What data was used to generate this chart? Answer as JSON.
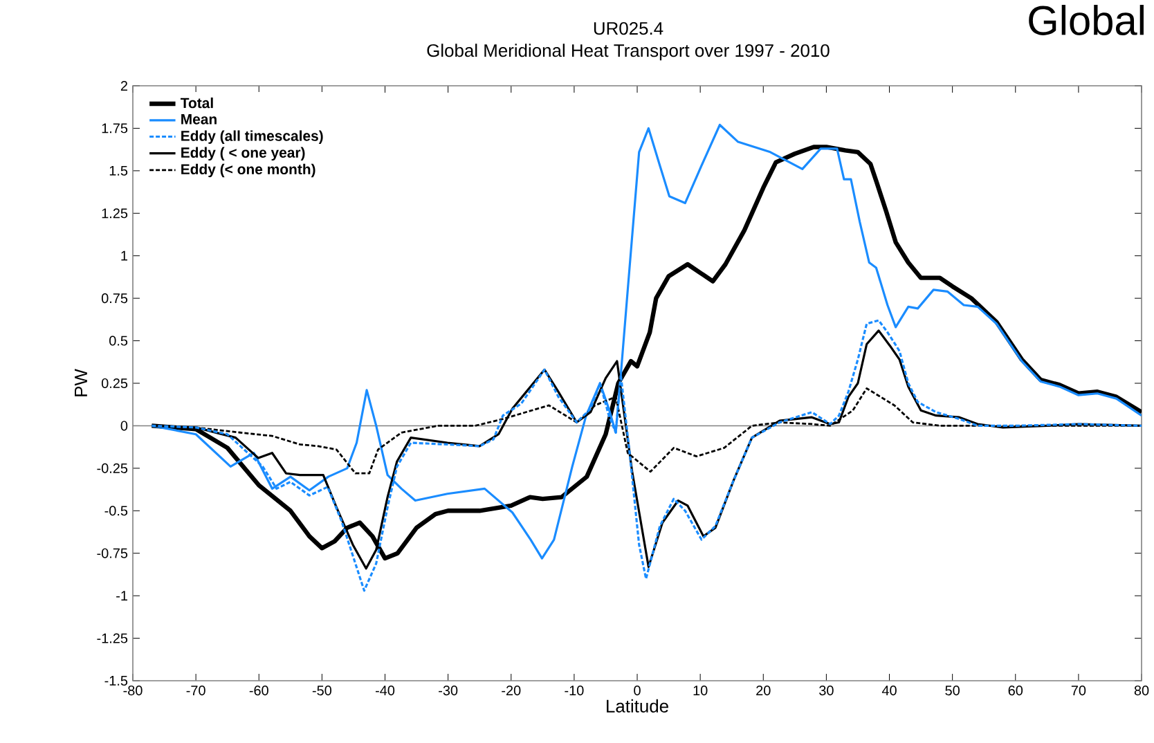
{
  "chart_data": {
    "type": "line",
    "title": "UR025.4",
    "subtitle": "Global Meridional Heat Transport over 1997 - 2010",
    "xlabel": "Latitude",
    "ylabel": "PW",
    "annotations": [
      "Global"
    ],
    "xlim": [
      -80,
      80
    ],
    "ylim": [
      -1.5,
      2
    ],
    "xticks": [
      -80,
      -70,
      -60,
      -50,
      -40,
      -30,
      -20,
      -10,
      0,
      10,
      20,
      30,
      40,
      50,
      60,
      70,
      80
    ],
    "yticks": [
      -1.5,
      -1.25,
      -1,
      -0.75,
      -0.5,
      -0.25,
      0,
      0.25,
      0.5,
      0.75,
      1,
      1.25,
      1.5,
      1.75,
      2
    ],
    "legend": "top left",
    "grid": false,
    "ref_lines": [
      {
        "axis": "y",
        "value": 0,
        "color": "#808080"
      }
    ],
    "series": [
      {
        "name": "Total",
        "color": "#000000",
        "line_style": "solid",
        "x": [
          -77,
          -70,
          -65,
          -60,
          -55,
          -52,
          -50,
          -48,
          -46,
          -44,
          -42,
          -40,
          -38,
          -35,
          -32,
          -30,
          -25,
          -20,
          -17,
          -15,
          -12,
          -8,
          -5,
          -3,
          -1,
          0,
          2,
          3,
          5,
          8,
          10,
          12,
          14,
          17,
          20,
          22,
          25,
          28,
          30,
          33,
          35,
          37,
          38,
          39.5,
          41,
          43,
          45,
          48,
          50,
          53,
          57,
          61,
          64,
          67,
          70,
          73,
          76,
          80
        ],
        "values": [
          0,
          -0.02,
          -0.13,
          -0.35,
          -0.5,
          -0.65,
          -0.72,
          -0.68,
          -0.6,
          -0.57,
          -0.65,
          -0.78,
          -0.75,
          -0.6,
          -0.52,
          -0.5,
          -0.5,
          -0.47,
          -0.42,
          -0.43,
          -0.42,
          -0.3,
          -0.05,
          0.25,
          0.38,
          0.35,
          0.55,
          0.75,
          0.88,
          0.95,
          0.9,
          0.85,
          0.95,
          1.15,
          1.4,
          1.55,
          1.6,
          1.64,
          1.64,
          1.62,
          1.61,
          1.54,
          1.43,
          1.26,
          1.08,
          0.96,
          0.87,
          0.87,
          0.82,
          0.75,
          0.61,
          0.39,
          0.27,
          0.24,
          0.19,
          0.2,
          0.17,
          0.08
        ]
      },
      {
        "name": "Mean",
        "color": "#1a8cff",
        "line_style": "solid",
        "x": [
          -77,
          -70,
          -64.5,
          -60.8,
          -57.9,
          -55,
          -52,
          -49,
          -46,
          -44.5,
          -42.9,
          -41.4,
          -39.6,
          -37.4,
          -35.2,
          -30.1,
          -24.2,
          -19.8,
          -16.9,
          -15.1,
          -13.2,
          -10.3,
          -8.1,
          -5.9,
          -4.5,
          -3.4,
          -2.6,
          -1.5,
          0.3,
          1.8,
          3.6,
          5.1,
          7.6,
          10.2,
          13.1,
          16,
          21.1,
          26.2,
          29.1,
          31.7,
          32.8,
          33.9,
          35.3,
          36.8,
          37.9,
          39.7,
          41,
          43,
          44.5,
          47,
          49.2,
          51.8,
          54,
          57,
          61,
          64,
          67,
          70,
          73,
          76,
          80
        ],
        "values": [
          0,
          -0.05,
          -0.24,
          -0.16,
          -0.37,
          -0.3,
          -0.38,
          -0.3,
          -0.25,
          -0.1,
          0.21,
          0,
          -0.29,
          -0.37,
          -0.44,
          -0.4,
          -0.37,
          -0.51,
          -0.67,
          -0.78,
          -0.67,
          -0.24,
          0.06,
          0.25,
          0.1,
          -0.04,
          0.3,
          0.8,
          1.61,
          1.75,
          1.53,
          1.35,
          1.31,
          1.53,
          1.77,
          1.67,
          1.61,
          1.51,
          1.63,
          1.63,
          1.45,
          1.45,
          1.2,
          0.96,
          0.93,
          0.71,
          0.58,
          0.7,
          0.69,
          0.8,
          0.79,
          0.71,
          0.7,
          0.6,
          0.38,
          0.26,
          0.23,
          0.18,
          0.19,
          0.16,
          0.06
        ]
      },
      {
        "name": "Eddy (all timescales)",
        "color": "#1a8cff",
        "line_style": "dashed",
        "x": [
          -77,
          -70,
          -65,
          -59.4,
          -57.2,
          -55,
          -52,
          -49.1,
          -46.9,
          -44.7,
          -43.3,
          -41.4,
          -39.6,
          -38.1,
          -35.9,
          -30.1,
          -25,
          -22.8,
          -21.3,
          -18.4,
          -14.7,
          -12.5,
          -9.6,
          -7.4,
          -5.9,
          -4.5,
          -3.4,
          -2.6,
          -1.2,
          0.3,
          1.4,
          3.6,
          5.8,
          7.6,
          10.2,
          12.4,
          15.3,
          18.2,
          22.6,
          27.7,
          30.6,
          32,
          33.5,
          35,
          36.4,
          38.3,
          39.7,
          41.6,
          43,
          44.5,
          47.4,
          51.1,
          54,
          60,
          70,
          80
        ],
        "values": [
          0,
          -0.01,
          -0.05,
          -0.24,
          -0.37,
          -0.33,
          -0.41,
          -0.36,
          -0.56,
          -0.81,
          -0.97,
          -0.81,
          -0.48,
          -0.24,
          -0.1,
          -0.11,
          -0.12,
          -0.08,
          0.06,
          0.13,
          0.33,
          0.17,
          0.02,
          0.1,
          0.25,
          0.06,
          -0.04,
          0.3,
          -0.16,
          -0.7,
          -0.9,
          -0.59,
          -0.43,
          -0.5,
          -0.67,
          -0.59,
          -0.32,
          -0.07,
          0.02,
          0.08,
          0.01,
          0.06,
          0.2,
          0.39,
          0.6,
          0.62,
          0.55,
          0.44,
          0.25,
          0.14,
          0.08,
          0.04,
          0,
          0,
          0.01,
          0
        ]
      },
      {
        "name": "Eddy ( < one year)",
        "color": "#000000",
        "line_style": "solid",
        "x": [
          -77,
          -70,
          -63.7,
          -60.1,
          -57.9,
          -55.7,
          -53.5,
          -49.8,
          -47.7,
          -45.1,
          -43,
          -41.4,
          -39.6,
          -38.1,
          -35.9,
          -30.1,
          -25,
          -22,
          -19.8,
          -14.7,
          -12.5,
          -9.6,
          -7.4,
          -5,
          -3.2,
          -0.8,
          1.8,
          4,
          6.5,
          8,
          10.5,
          12.4,
          15.3,
          18.2,
          22.6,
          27.7,
          30.6,
          32,
          33.5,
          35,
          36.4,
          38.3,
          40.1,
          41.6,
          43,
          45,
          47.4,
          51.1,
          54,
          58,
          65,
          70,
          80
        ],
        "values": [
          0,
          -0.01,
          -0.07,
          -0.19,
          -0.16,
          -0.28,
          -0.29,
          -0.29,
          -0.48,
          -0.7,
          -0.84,
          -0.73,
          -0.42,
          -0.21,
          -0.07,
          -0.1,
          -0.12,
          -0.05,
          0.1,
          0.33,
          0.2,
          0.02,
          0.08,
          0.28,
          0.38,
          -0.27,
          -0.83,
          -0.57,
          -0.44,
          -0.47,
          -0.65,
          -0.6,
          -0.32,
          -0.07,
          0.03,
          0.05,
          0.01,
          0.02,
          0.17,
          0.25,
          0.48,
          0.56,
          0.47,
          0.39,
          0.23,
          0.09,
          0.06,
          0.05,
          0.01,
          -0.01,
          0,
          0.01,
          0
        ]
      },
      {
        "name": "Eddy (< one month)",
        "color": "#000000",
        "line_style": "dashed",
        "x": [
          -77,
          -70,
          -63,
          -57.9,
          -53.5,
          -50.6,
          -47.7,
          -44.7,
          -42.5,
          -41.1,
          -37.4,
          -31.6,
          -25.7,
          -21.3,
          -14,
          -9.6,
          -6.7,
          -3.4,
          -1.5,
          2.1,
          5.8,
          9.4,
          13.8,
          18.2,
          22.6,
          27.7,
          30.6,
          34.2,
          36.4,
          38.6,
          40.8,
          43.7,
          48,
          60,
          80
        ],
        "values": [
          0,
          -0.01,
          -0.04,
          -0.06,
          -0.11,
          -0.12,
          -0.14,
          -0.28,
          -0.28,
          -0.14,
          -0.04,
          0,
          0,
          0.04,
          0.12,
          0.02,
          0.12,
          0.17,
          -0.16,
          -0.27,
          -0.13,
          -0.18,
          -0.13,
          0,
          0.02,
          0.01,
          0,
          0.09,
          0.22,
          0.17,
          0.12,
          0.02,
          0,
          0,
          0
        ]
      }
    ]
  }
}
